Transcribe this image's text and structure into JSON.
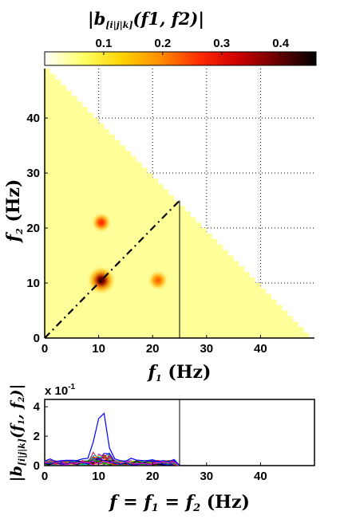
{
  "colors": {
    "colormap": [
      "#ffffff",
      "#ffff66",
      "#ffd200",
      "#ff8c00",
      "#ff2a00",
      "#cc0000",
      "#6a0000",
      "#000000"
    ],
    "triangle_fill": "#ffff99",
    "grid": "#000000",
    "diagonal": "#000000"
  },
  "chart_data": [
    {
      "type": "heatmap",
      "role": "colorbar",
      "title": "|b[i|j|k](f1, f2)|",
      "title_parts": {
        "pre": "|",
        "b": "b",
        "sub": "[i|j|k]",
        "args": "(f1, f2)",
        "post": "|"
      },
      "ticks": [
        "0.1",
        "0.2",
        "0.3",
        "0.4"
      ],
      "range": [
        0,
        0.46
      ]
    },
    {
      "type": "heatmap",
      "role": "bicoherence",
      "x": {
        "min": 0,
        "max": 50,
        "ticks": [
          "0",
          "10",
          "20",
          "30",
          "40"
        ],
        "label": "f1 (Hz)"
      },
      "y": {
        "min": 0,
        "max": 49,
        "ticks": [
          "0",
          "10",
          "20",
          "30",
          "40"
        ],
        "label": "f2 (Hz)"
      },
      "support": "f1 + f2 <= 50",
      "background_value": 0.05,
      "peaks": [
        {
          "f1": 10.5,
          "f2": 10.5,
          "value": 0.4
        },
        {
          "f1": 10.5,
          "f2": 21,
          "value": 0.25
        },
        {
          "f1": 21,
          "f2": 10.5,
          "value": 0.22
        }
      ],
      "diagonal": "f1 = f2",
      "marker_f1": 25,
      "grid": true
    },
    {
      "type": "line",
      "role": "diagonal-slice",
      "x": {
        "min": 0,
        "max": 50,
        "ticks": [
          "0",
          "10",
          "20",
          "30",
          "40"
        ]
      },
      "y": {
        "min": 0,
        "max": 4.5,
        "ticks": [
          "0",
          "2",
          "4"
        ]
      },
      "multiplier": "x 10-1",
      "ylabel": "|b[i|j|k](f1, f2)|",
      "xlabel": "f = f1 = f2 (Hz)",
      "series_count": 40,
      "highlight_series": {
        "color": "#0000ff",
        "peak_x": 10.5,
        "peak_y": 3.55
      },
      "noise_level": 0.3,
      "cutoff_x": 25
    }
  ]
}
